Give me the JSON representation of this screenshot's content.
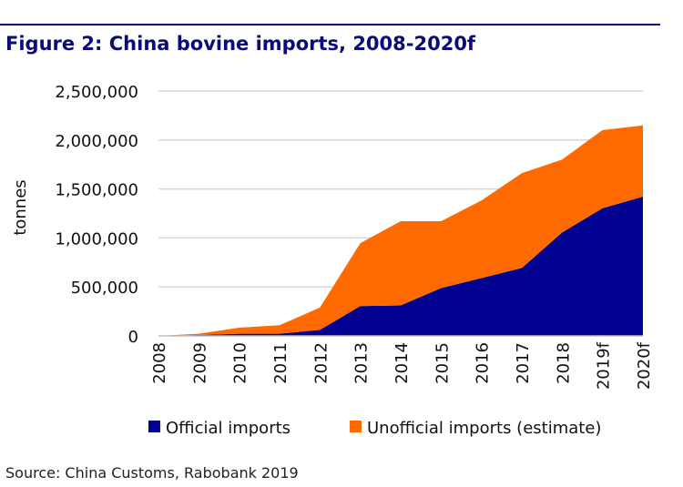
{
  "title": "Figure 2: China bovine imports, 2008-2020f",
  "source": "Source: China Customs, Rabobank 2019",
  "chart_data": {
    "type": "area",
    "stacked": true,
    "title": "Figure 2: China bovine imports, 2008-2020f",
    "xlabel": "",
    "ylabel": "tonnes",
    "ylim": [
      0,
      2500000
    ],
    "yticks": [
      0,
      500000,
      1000000,
      1500000,
      2000000,
      2500000
    ],
    "ytick_labels": [
      "0",
      "500,000",
      "1,000,000",
      "1,500,000",
      "2,000,000",
      "2,500,000"
    ],
    "grid": "horizontal",
    "legend": "bottom",
    "categories": [
      "2008",
      "2009",
      "2010",
      "2011",
      "2012",
      "2013",
      "2014",
      "2015",
      "2016",
      "2017",
      "2018",
      "2019f",
      "2020f"
    ],
    "series": [
      {
        "name": "Official imports",
        "color": "#000091",
        "values": [
          0,
          9000,
          22000,
          22000,
          62000,
          304000,
          311000,
          488000,
          590000,
          693000,
          1056000,
          1304000,
          1422000
        ]
      },
      {
        "name": "Unofficial imports (estimate)",
        "color": "#ff6a00",
        "values": [
          0,
          13000,
          62000,
          87000,
          227000,
          643000,
          860000,
          683000,
          792000,
          968000,
          745000,
          798000,
          727000
        ]
      }
    ]
  }
}
